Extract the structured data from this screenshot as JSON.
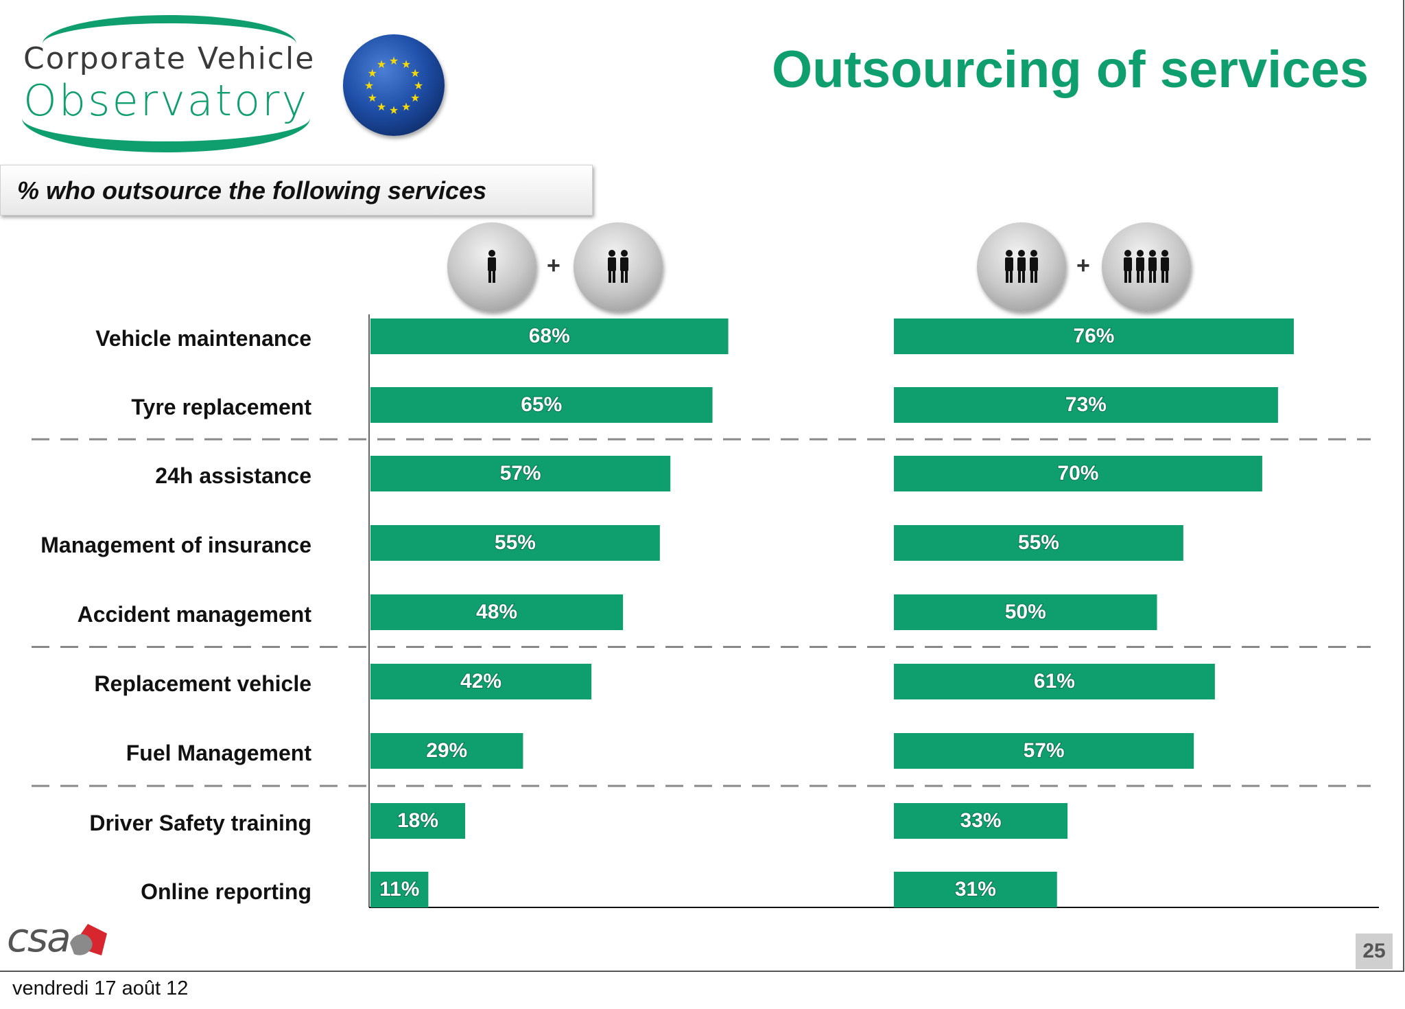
{
  "header": {
    "logo_line1": "Corporate Vehicle",
    "logo_line2": "Observatory",
    "title": "Outsourcing of services"
  },
  "subtitle": "% who outsource the following services",
  "group_icons": [
    {
      "left_icon": "one-person-icon",
      "right_icon": "two-persons-icon",
      "plus": "+"
    },
    {
      "left_icon": "three-persons-icon",
      "right_icon": "four-persons-icon",
      "plus": "+"
    }
  ],
  "chart_data": {
    "type": "bar",
    "orientation": "horizontal",
    "categories": [
      "Vehicle maintenance",
      "Tyre replacement",
      "24h assistance",
      "Management of insurance",
      "Accident management",
      "Replacement vehicle",
      "Fuel Management",
      "Driver Safety training",
      "Online reporting"
    ],
    "series": [
      {
        "values": [
          68,
          65,
          57,
          55,
          48,
          42,
          29,
          18,
          11
        ]
      },
      {
        "values": [
          76,
          73,
          70,
          55,
          50,
          61,
          57,
          33,
          31
        ]
      }
    ],
    "value_suffix": "%",
    "group_separators_after": [
      1,
      4,
      6
    ],
    "bar_color": "#0f9e6e"
  },
  "footer": {
    "brand": "csa",
    "page_number": "25",
    "date": "vendredi 17 août 12"
  },
  "colors": {
    "accent": "#0f9e6e",
    "separator": "#888888"
  }
}
